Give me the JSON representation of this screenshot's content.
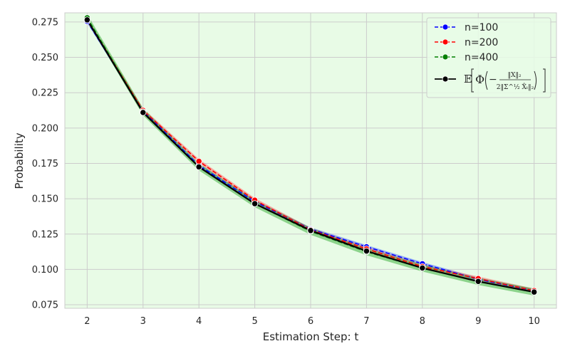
{
  "chart_data": {
    "type": "line",
    "x": [
      2,
      3,
      4,
      5,
      6,
      7,
      8,
      9,
      10
    ],
    "xlabel": "Estimation Step: t",
    "ylabel": "Probability",
    "xlim": [
      1.6,
      10.4
    ],
    "ylim": [
      0.0725,
      0.2815
    ],
    "xticks": [
      "2",
      "3",
      "4",
      "5",
      "6",
      "7",
      "8",
      "9",
      "10"
    ],
    "yticks": [
      "0.075",
      "0.100",
      "0.125",
      "0.150",
      "0.175",
      "0.200",
      "0.225",
      "0.250",
      "0.275"
    ],
    "grid": true,
    "background_color": "#e8fbe6",
    "legend_position": "top-right",
    "series": [
      {
        "name": "n=100",
        "values": [
          0.2755,
          0.212,
          0.1735,
          0.148,
          0.1285,
          0.116,
          0.104,
          0.093,
          0.085
        ],
        "band_width": 0.0012,
        "color": "#0000ff",
        "band_color": "#4d6dff",
        "style": "dashed"
      },
      {
        "name": "n=200",
        "values": [
          0.2765,
          0.2125,
          0.1765,
          0.149,
          0.128,
          0.1145,
          0.102,
          0.0935,
          0.085
        ],
        "band_width": 0.0015,
        "color": "#ff0000",
        "band_color": "#ff6b6b",
        "style": "dashed"
      },
      {
        "name": "n=400",
        "values": [
          0.278,
          0.2115,
          0.1725,
          0.1465,
          0.127,
          0.1125,
          0.101,
          0.0915,
          0.084
        ],
        "band_width": 0.0025,
        "color": "#008000",
        "band_color": "#3fb23f",
        "style": "dashed"
      },
      {
        "name": "",
        "values": [
          0.2765,
          0.211,
          0.1725,
          0.1465,
          0.1275,
          0.113,
          0.101,
          0.0915,
          0.084
        ],
        "color": "#000000",
        "style": "solid"
      }
    ],
    "legend_formula": {
      "expect": "𝔼",
      "phi": "Φ",
      "minus": "−",
      "numerator": "‖X‖₂",
      "denominator": "2‖Σ^½ X̂ₜ‖₂"
    }
  }
}
